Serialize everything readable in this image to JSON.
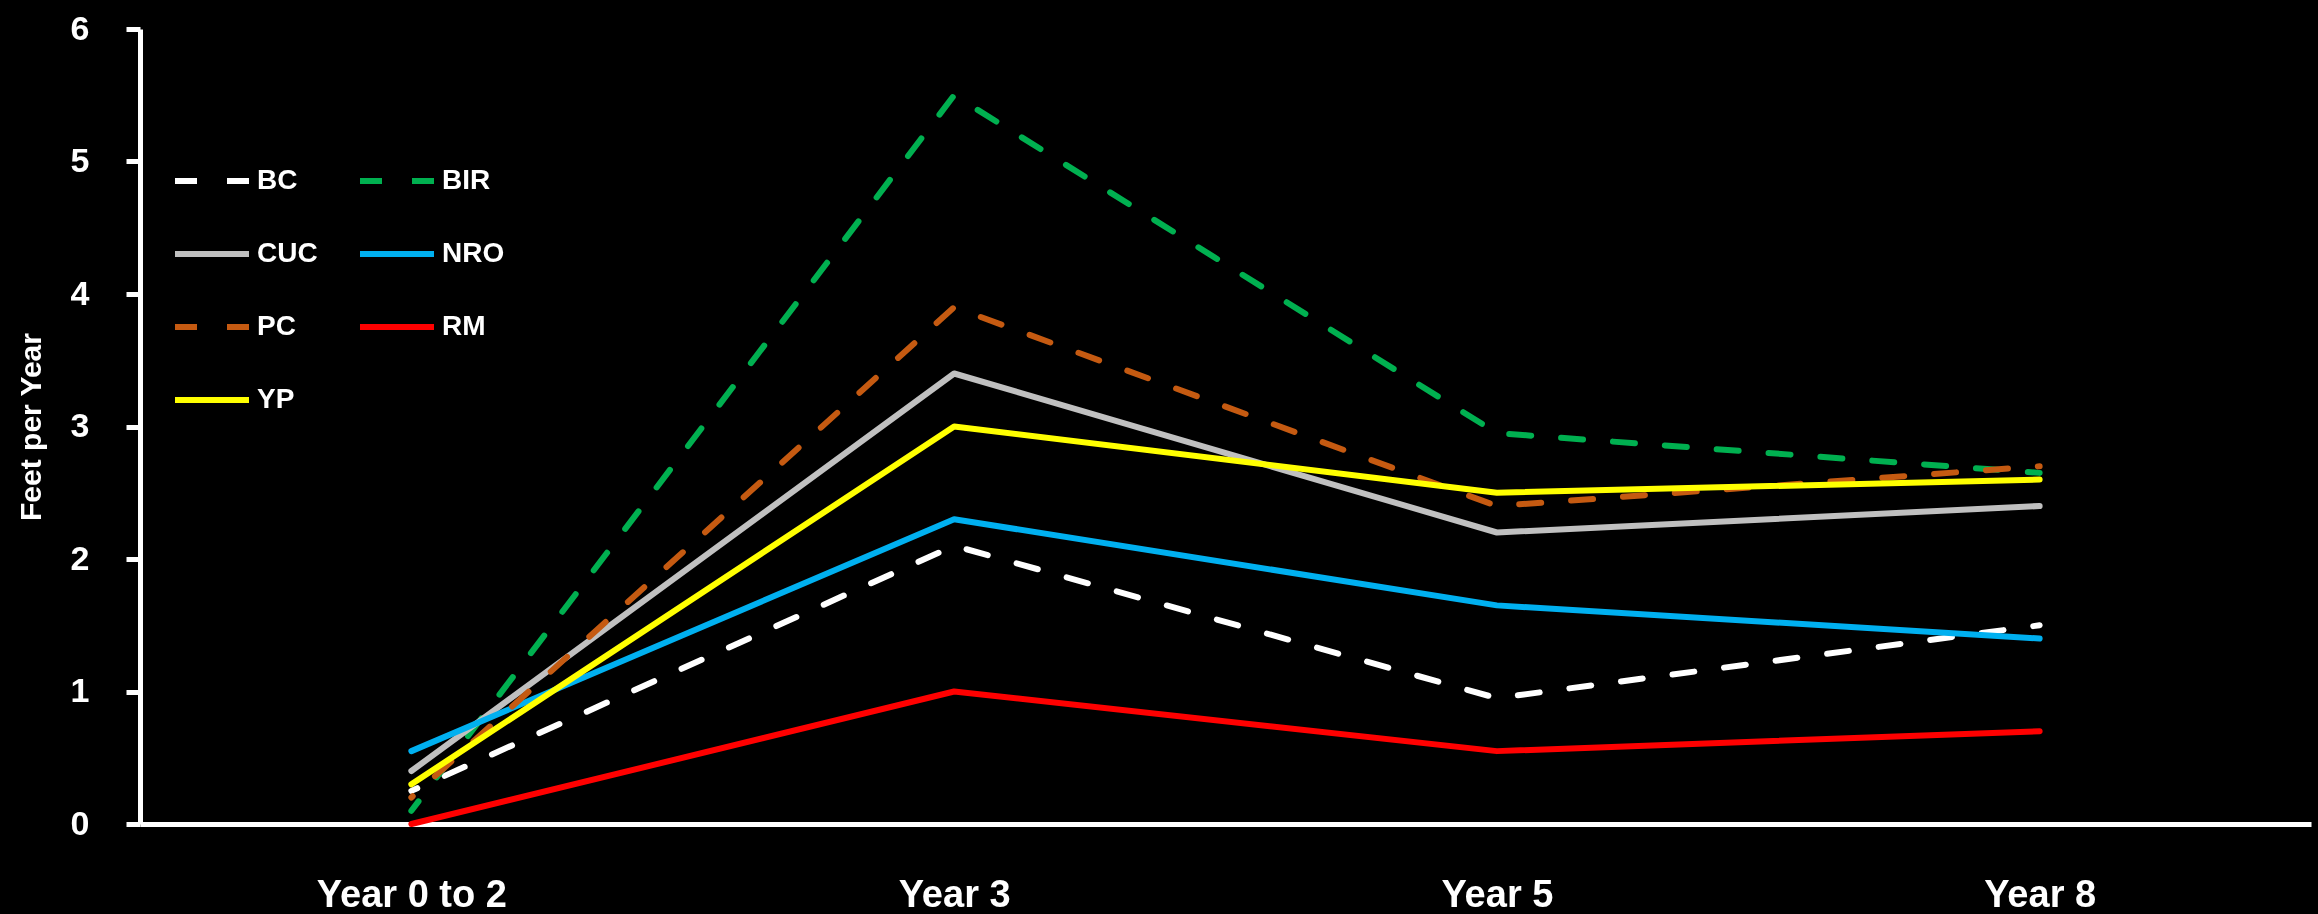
{
  "chart_data": {
    "type": "line",
    "ylabel": "Feet per Year",
    "categories": [
      "Year 0 to 2",
      "Year 3",
      "Year 5",
      "Year 8"
    ],
    "ylim": [
      0,
      6
    ],
    "yticks": [
      0,
      1,
      2,
      3,
      4,
      5,
      6
    ],
    "grid": false,
    "legend": "top left",
    "series": [
      {
        "name": "BC",
        "color": "#ffffff",
        "line_style": "dashed",
        "values": [
          0.25,
          2.1,
          0.95,
          1.5
        ]
      },
      {
        "name": "BIR",
        "color": "#00b050",
        "line_style": "dashed",
        "values": [
          0.1,
          5.5,
          2.95,
          2.65
        ]
      },
      {
        "name": "CUC",
        "color": "#c0c0c0",
        "line_style": "solid",
        "values": [
          0.4,
          3.4,
          2.2,
          2.4
        ]
      },
      {
        "name": "NRO",
        "color": "#00b0f0",
        "line_style": "solid",
        "values": [
          0.55,
          2.3,
          1.65,
          1.4
        ]
      },
      {
        "name": "PC",
        "color": "#c55a11",
        "line_style": "dashed",
        "values": [
          0.2,
          3.9,
          2.4,
          2.7
        ]
      },
      {
        "name": "RM",
        "color": "#ff0000",
        "line_style": "solid",
        "values": [
          0,
          1.0,
          0.55,
          0.7
        ]
      },
      {
        "name": "YP",
        "color": "#ffff00",
        "line_style": "solid",
        "values": [
          0.3,
          3.0,
          2.5,
          2.6
        ]
      }
    ]
  }
}
